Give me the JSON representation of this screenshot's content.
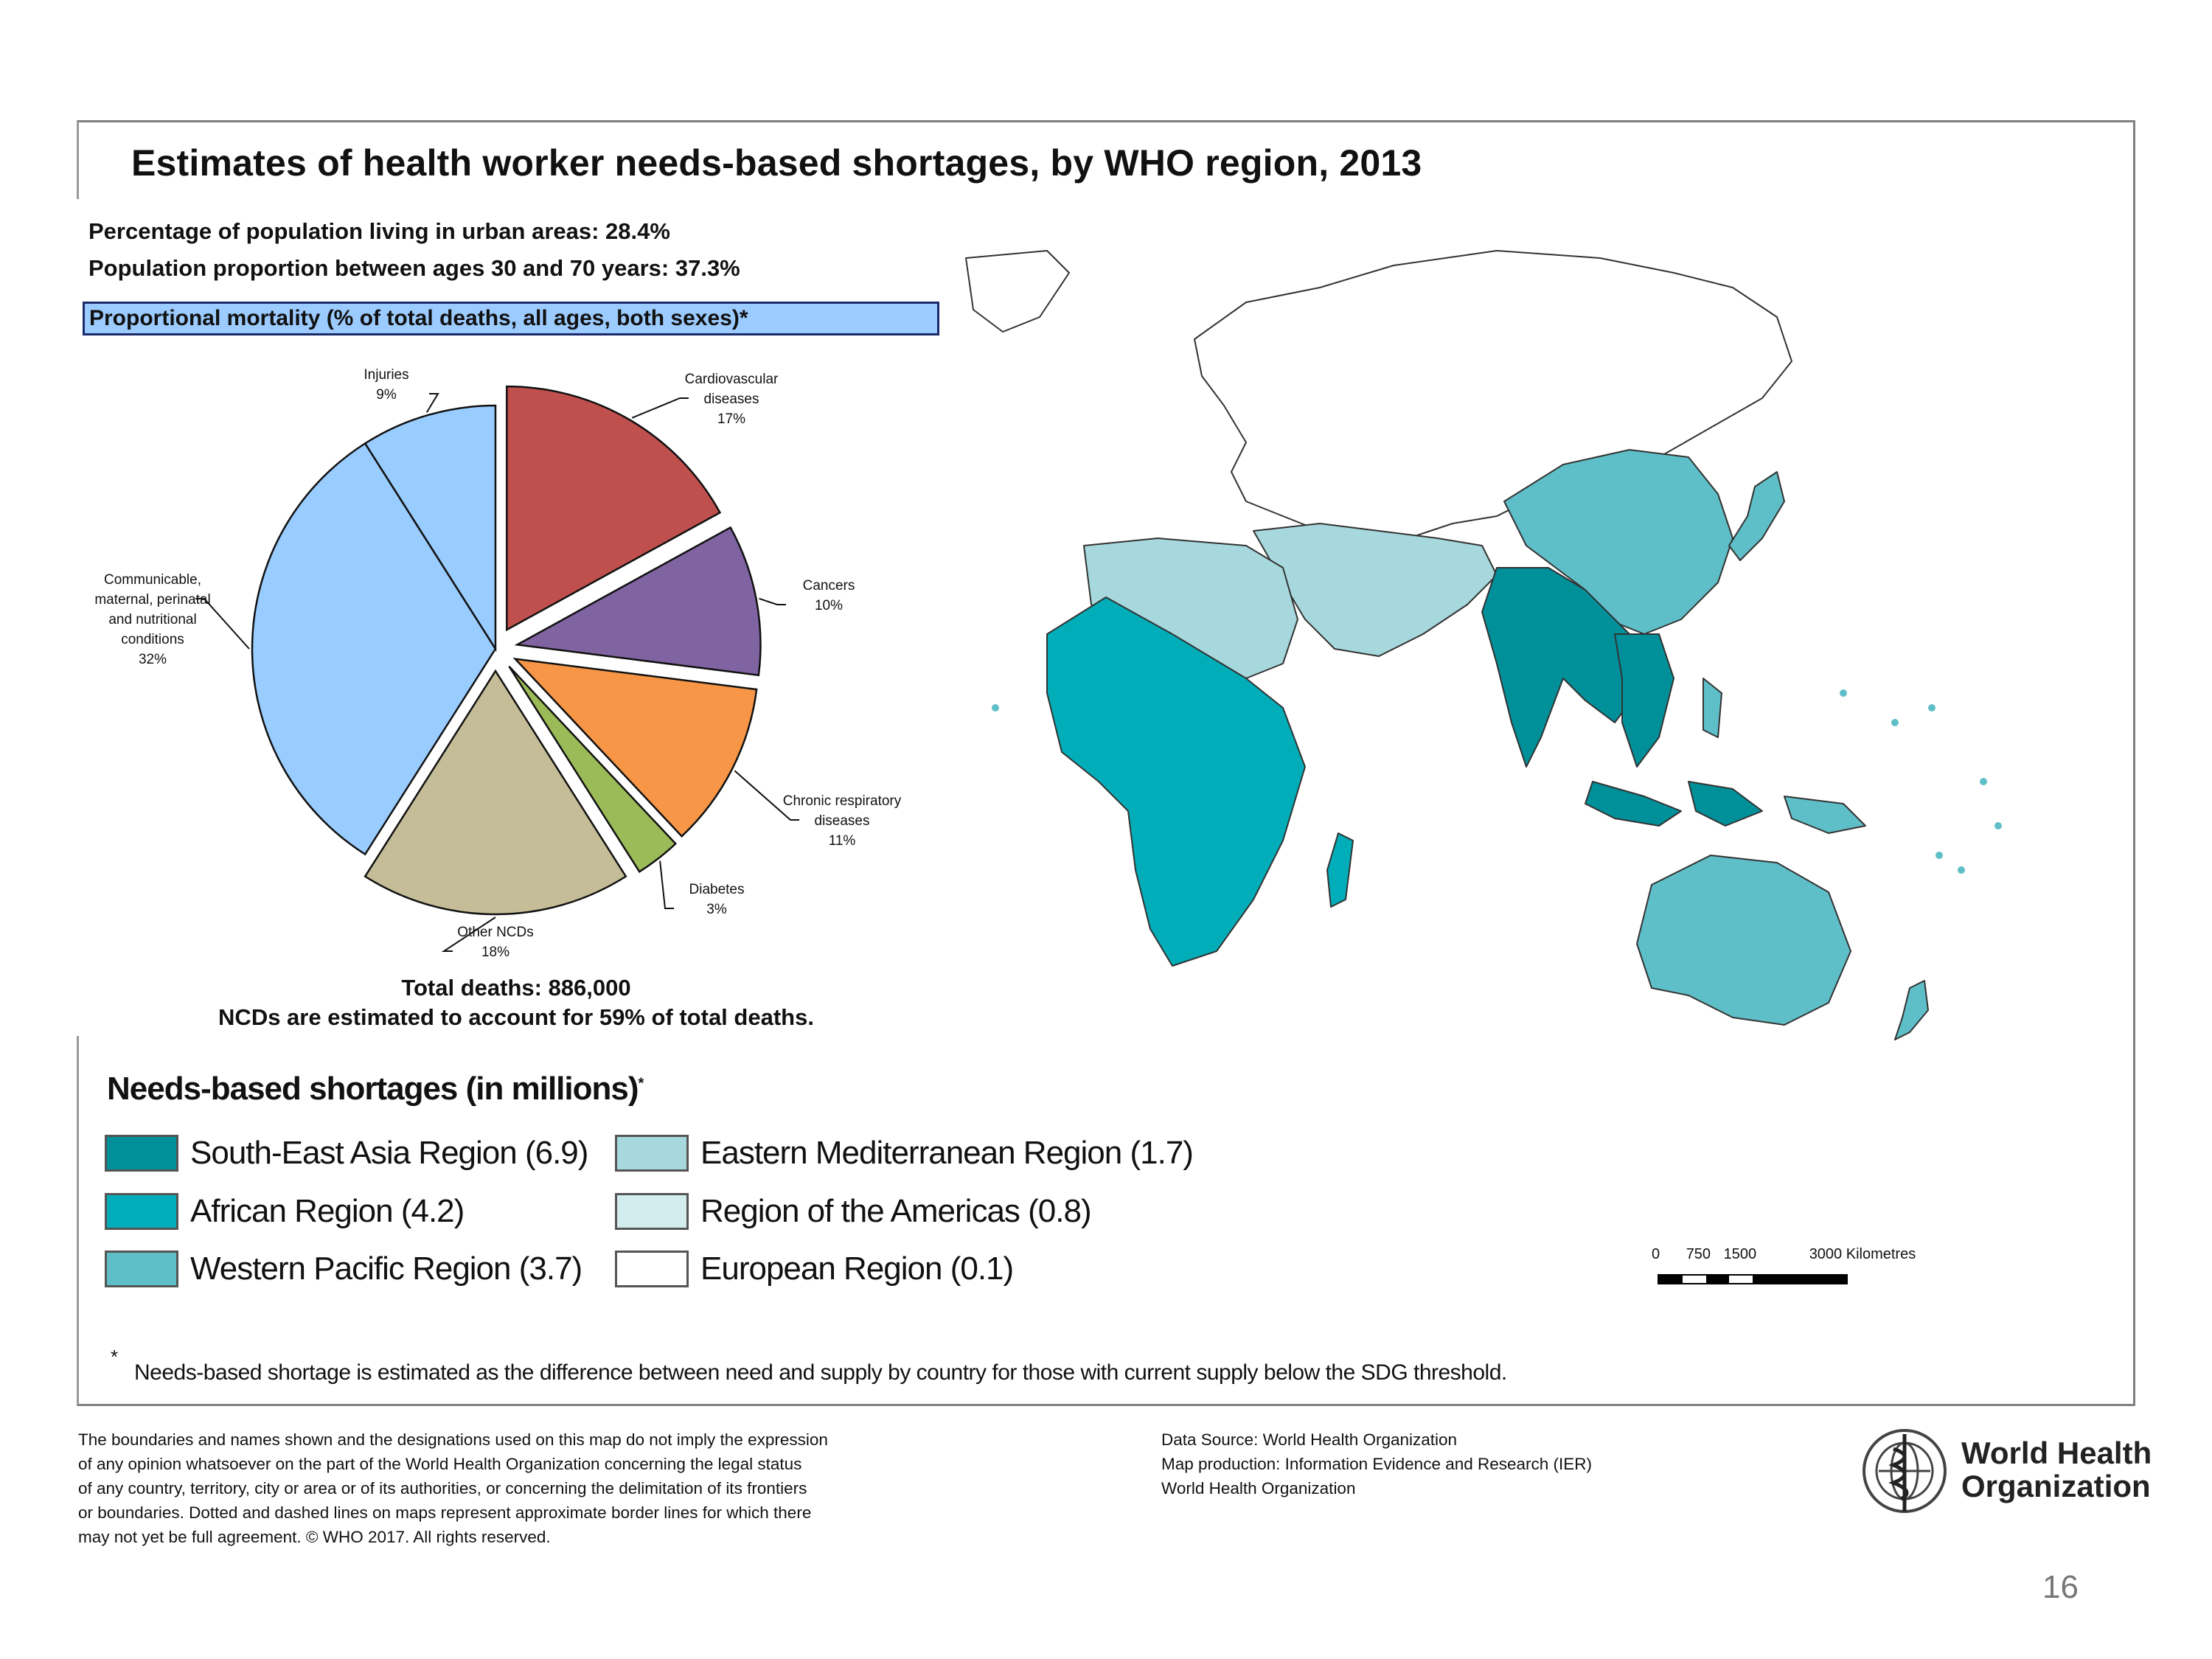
{
  "title": "Estimates of health worker needs-based shortages, by WHO region, 2013",
  "stats": {
    "urban": "Percentage of population living in urban areas: 28.4%",
    "age_30_70": "Population proportion between ages 30 and 70 years:  37.3%"
  },
  "mortality_box_label": "Proportional mortality (% of total deaths, all ages, both sexes)*",
  "chart_data": {
    "type": "pie",
    "title": "Proportional mortality (% of total deaths, all ages, both sexes)*",
    "unit": "%",
    "slices": [
      {
        "name": "Cardiovascular diseases",
        "lines": [
          "Cardiovascular",
          "diseases",
          "17%"
        ],
        "value": 17,
        "color": "#c0504d"
      },
      {
        "name": "Cancers",
        "lines": [
          "Cancers",
          "10%"
        ],
        "value": 10,
        "color": "#8064a2"
      },
      {
        "name": "Chronic respiratory diseases",
        "lines": [
          "Chronic respiratory",
          "diseases",
          "11%"
        ],
        "value": 11,
        "color": "#f79646"
      },
      {
        "name": "Diabetes",
        "lines": [
          "Diabetes",
          "3%"
        ],
        "value": 3,
        "color": "#9bbb59"
      },
      {
        "name": "Other NCDs",
        "lines": [
          "Other NCDs",
          "18%"
        ],
        "value": 18,
        "color": "#c4bd97"
      },
      {
        "name": "Communicable, maternal, perinatal and nutritional conditions",
        "lines": [
          "Communicable,",
          "maternal, perinatal",
          "and nutritional",
          "conditions",
          "32%"
        ],
        "value": 32,
        "color": "#99ccff"
      },
      {
        "name": "Injuries",
        "lines": [
          "Injuries",
          "9%"
        ],
        "value": 9,
        "color": "#99ccff"
      }
    ]
  },
  "totals": {
    "deaths": "Total deaths: 886,000",
    "ncd": "NCDs are estimated to account for 59% of total deaths."
  },
  "legend": {
    "title": "Needs-based shortages (in millions)",
    "title_mark": "*",
    "items": [
      {
        "label": "South-East Asia Region (6.9)",
        "color": "#00909a"
      },
      {
        "label": "African Region (4.2)",
        "color": "#00adb8"
      },
      {
        "label": "Western Pacific Region (3.7)",
        "color": "#5fbfc8"
      },
      {
        "label": "Eastern Mediterranean Region (1.7)",
        "color": "#a6d8dd"
      },
      {
        "label": "Region of the Americas (0.8)",
        "color": "#d3eced"
      },
      {
        "label": "European Region (0.1)",
        "color": "#ffffff"
      }
    ]
  },
  "scale": {
    "ticks": [
      "0",
      "750",
      "1500",
      "3000 Kilometres"
    ]
  },
  "footnote": {
    "mark": "*",
    "text": "Needs-based shortage is estimated as the difference between need and supply by country for those  with current supply below the SDG threshold."
  },
  "disclaimer": [
    "The boundaries and names shown and the designations used on this map do not imply the expression",
    "of any opinion whatsoever on the part of the World Health Organization concerning the legal status",
    "of any country, territory, city or area or of its authorities, or concerning the delimitation of its frontiers",
    "or boundaries. Dotted and dashed lines on maps represent approximate border lines for which there",
    "may not yet be full agreement. © WHO 2017. All rights reserved."
  ],
  "source": [
    "Data Source: World Health Organization",
    "Map production: Information Evidence and Research (IER)",
    "World Health Organization"
  ],
  "who": {
    "line1": "World Health",
    "line2": "Organization"
  },
  "page_number": "16"
}
